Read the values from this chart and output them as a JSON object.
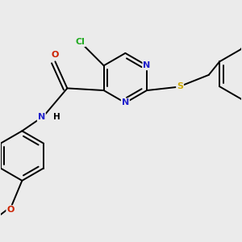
{
  "background_color": "#ebebeb",
  "bond_color": "#000000",
  "bond_width": 1.4,
  "figsize": [
    3.0,
    3.0
  ],
  "dpi": 100,
  "colors": {
    "N": "#2222cc",
    "O": "#cc2200",
    "S": "#ccaa00",
    "Cl": "#22aa22"
  }
}
